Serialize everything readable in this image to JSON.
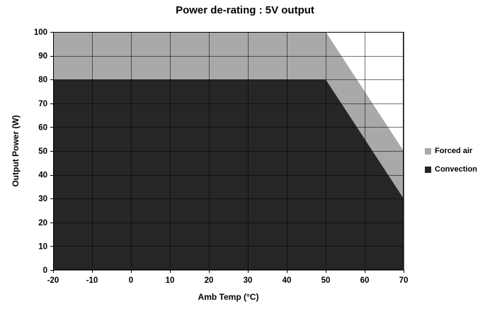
{
  "chart_data": {
    "type": "area",
    "title": "Power de-rating : 5V output",
    "xlabel": "Amb Temp (°C)",
    "ylabel": "Output Power (W)",
    "xlim": [
      -20,
      70
    ],
    "ylim": [
      0,
      100
    ],
    "x_ticks": [
      -20,
      -10,
      0,
      10,
      20,
      30,
      40,
      50,
      60,
      70
    ],
    "y_ticks": [
      0,
      10,
      20,
      30,
      40,
      50,
      60,
      70,
      80,
      90,
      100
    ],
    "grid": true,
    "legend_position": "right",
    "series": [
      {
        "name": "Forced air",
        "color": "#a9a9a9",
        "points": [
          [
            -20,
            100
          ],
          [
            50,
            100
          ],
          [
            70,
            50
          ]
        ]
      },
      {
        "name": "Convection",
        "color": "#262626",
        "points": [
          [
            -20,
            80
          ],
          [
            50,
            80
          ],
          [
            70,
            30
          ]
        ]
      }
    ],
    "colors": {
      "plot_background": "#ffffff",
      "grid_line": "rgba(0,0,0,0.55)",
      "border": "#000000",
      "text": "#000000"
    }
  }
}
